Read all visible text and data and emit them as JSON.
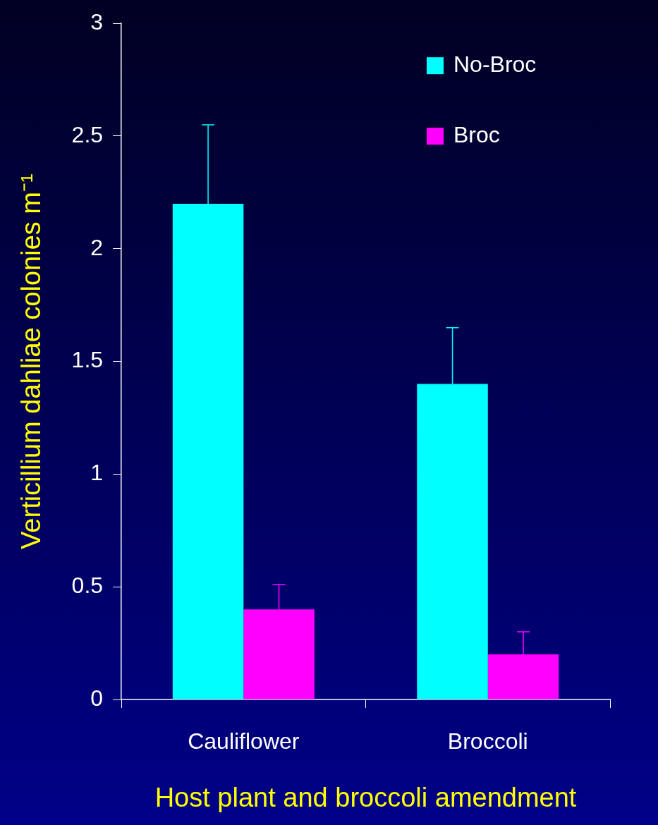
{
  "chart_data": {
    "type": "bar",
    "xlabel": "Host plant and broccoli amendment",
    "ylabel": "Verticillium dahliae colonies m⁻¹",
    "categories": [
      "Cauliflower",
      "Broccoli"
    ],
    "series": [
      {
        "name": "No-Broc",
        "color": "#00ffff",
        "values": [
          2.2,
          1.4
        ],
        "errors": [
          [
            2.2,
            2.55
          ],
          [
            1.4,
            1.65
          ]
        ]
      },
      {
        "name": "Broc",
        "color": "#ff00ff",
        "values": [
          0.4,
          0.2
        ],
        "errors": [
          [
            0.4,
            0.51
          ],
          [
            0.2,
            0.3
          ]
        ]
      }
    ],
    "ylim": [
      0,
      3
    ],
    "yticks": [
      0,
      0.5,
      1,
      1.5,
      2,
      2.5,
      3
    ],
    "grid": false,
    "legend": "top right"
  }
}
